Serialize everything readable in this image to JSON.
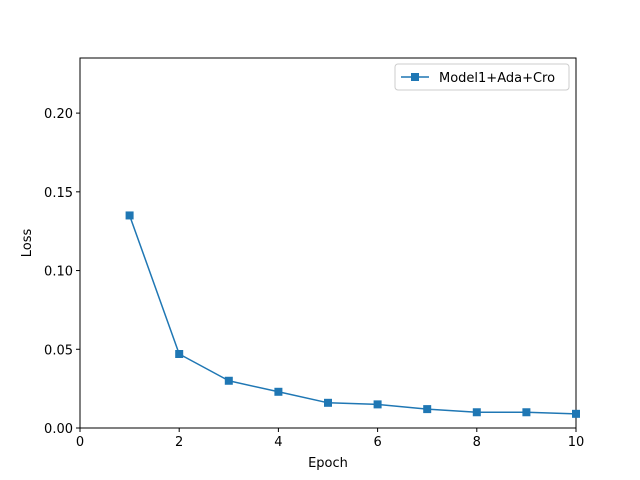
{
  "chart_data": {
    "type": "line",
    "title": "",
    "xlabel": "Epoch",
    "ylabel": "Loss",
    "xlim": [
      0,
      10
    ],
    "ylim": [
      0,
      0.235
    ],
    "xticks": [
      0,
      2,
      4,
      6,
      8,
      10
    ],
    "xtick_labels": [
      "0",
      "2",
      "4",
      "6",
      "8",
      "10"
    ],
    "yticks": [
      0.0,
      0.05,
      0.1,
      0.15,
      0.2
    ],
    "ytick_labels": [
      "0.00",
      "0.05",
      "0.10",
      "0.15",
      "0.20"
    ],
    "grid": false,
    "legend_position": "top-right",
    "series": [
      {
        "name": "Model1+Ada+Cro",
        "color": "#1f77b4",
        "marker": "square",
        "x": [
          1,
          2,
          3,
          4,
          5,
          6,
          7,
          8,
          9,
          10
        ],
        "y": [
          0.135,
          0.047,
          0.03,
          0.023,
          0.016,
          0.015,
          0.012,
          0.01,
          0.01,
          0.009
        ]
      }
    ]
  }
}
